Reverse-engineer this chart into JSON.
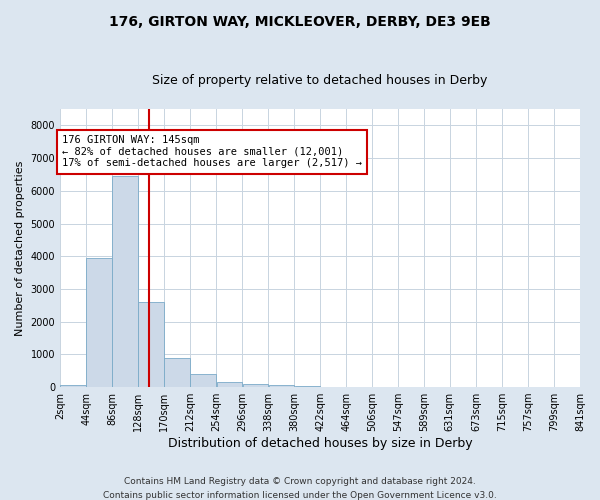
{
  "title1": "176, GIRTON WAY, MICKLEOVER, DERBY, DE3 9EB",
  "title2": "Size of property relative to detached houses in Derby",
  "xlabel": "Distribution of detached houses by size in Derby",
  "ylabel": "Number of detached properties",
  "footer1": "Contains HM Land Registry data © Crown copyright and database right 2024.",
  "footer2": "Contains public sector information licensed under the Open Government Licence v3.0.",
  "annotation_line1": "176 GIRTON WAY: 145sqm",
  "annotation_line2": "← 82% of detached houses are smaller (12,001)",
  "annotation_line3": "17% of semi-detached houses are larger (2,517) →",
  "bar_color": "#ccd9e8",
  "bar_edge_color": "#7aaac8",
  "line_color": "#cc0000",
  "annotation_box_facecolor": "#ffffff",
  "annotation_box_edgecolor": "#cc0000",
  "figure_facecolor": "#dce6f0",
  "axes_facecolor": "#ffffff",
  "grid_color": "#c8d4e0",
  "ylim": [
    0,
    8500
  ],
  "yticks": [
    0,
    1000,
    2000,
    3000,
    4000,
    5000,
    6000,
    7000,
    8000
  ],
  "property_size": 145,
  "bin_edges": [
    2,
    44,
    86,
    128,
    170,
    212,
    254,
    296,
    338,
    380,
    422,
    464,
    506,
    547,
    589,
    631,
    673,
    715,
    757,
    799,
    841
  ],
  "bar_heights": [
    50,
    3950,
    6450,
    2600,
    900,
    390,
    150,
    100,
    65,
    25,
    0,
    0,
    0,
    0,
    0,
    0,
    0,
    0,
    0,
    0
  ],
  "tick_labels": [
    "2sqm",
    "44sqm",
    "86sqm",
    "128sqm",
    "170sqm",
    "212sqm",
    "254sqm",
    "296sqm",
    "338sqm",
    "380sqm",
    "422sqm",
    "464sqm",
    "506sqm",
    "547sqm",
    "589sqm",
    "631sqm",
    "673sqm",
    "715sqm",
    "757sqm",
    "799sqm",
    "841sqm"
  ],
  "title1_fontsize": 10,
  "title2_fontsize": 9,
  "ylabel_fontsize": 8,
  "xlabel_fontsize": 9,
  "tick_fontsize": 7,
  "annotation_fontsize": 7.5,
  "footer_fontsize": 6.5
}
